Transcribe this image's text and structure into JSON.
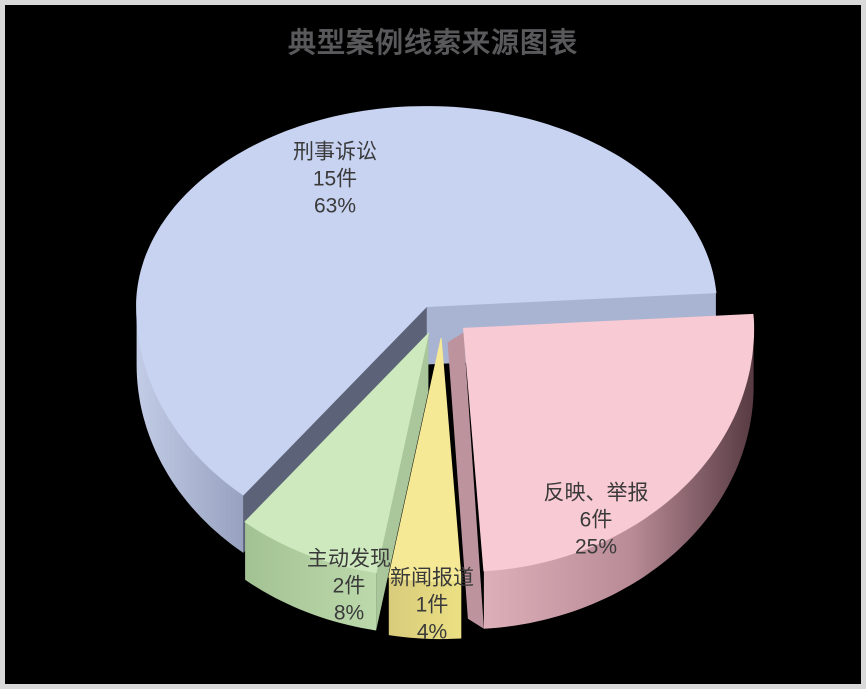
{
  "title": {
    "text": "典型案例线索来源图表",
    "color": "#59595b"
  },
  "canvas": {
    "background": "#000000",
    "frame_border_color": "#d9d9d9"
  },
  "chart_data": {
    "type": "pie",
    "style": "3d-exploded",
    "title": "典型案例线索来源图表",
    "unit": "件",
    "total_cases": 24,
    "legend": "none",
    "label_style": "name + count + percent printed on each slice",
    "slices": [
      {
        "label": "刑事诉讼",
        "value": 15,
        "count_label": "15件",
        "percent": 63,
        "percent_label": "63%",
        "color": "#c7d3f1"
      },
      {
        "label": "反映、举报",
        "value": 6,
        "count_label": "6件",
        "percent": 25,
        "percent_label": "25%",
        "color": "#f8cad3"
      },
      {
        "label": "新闻报道",
        "value": 1,
        "count_label": "1件",
        "percent": 4,
        "percent_label": "4%",
        "color": "#f5e996"
      },
      {
        "label": "主动发现",
        "value": 2,
        "count_label": "2件",
        "percent": 8,
        "percent_label": "8%",
        "color": "#cde9bd"
      }
    ]
  }
}
